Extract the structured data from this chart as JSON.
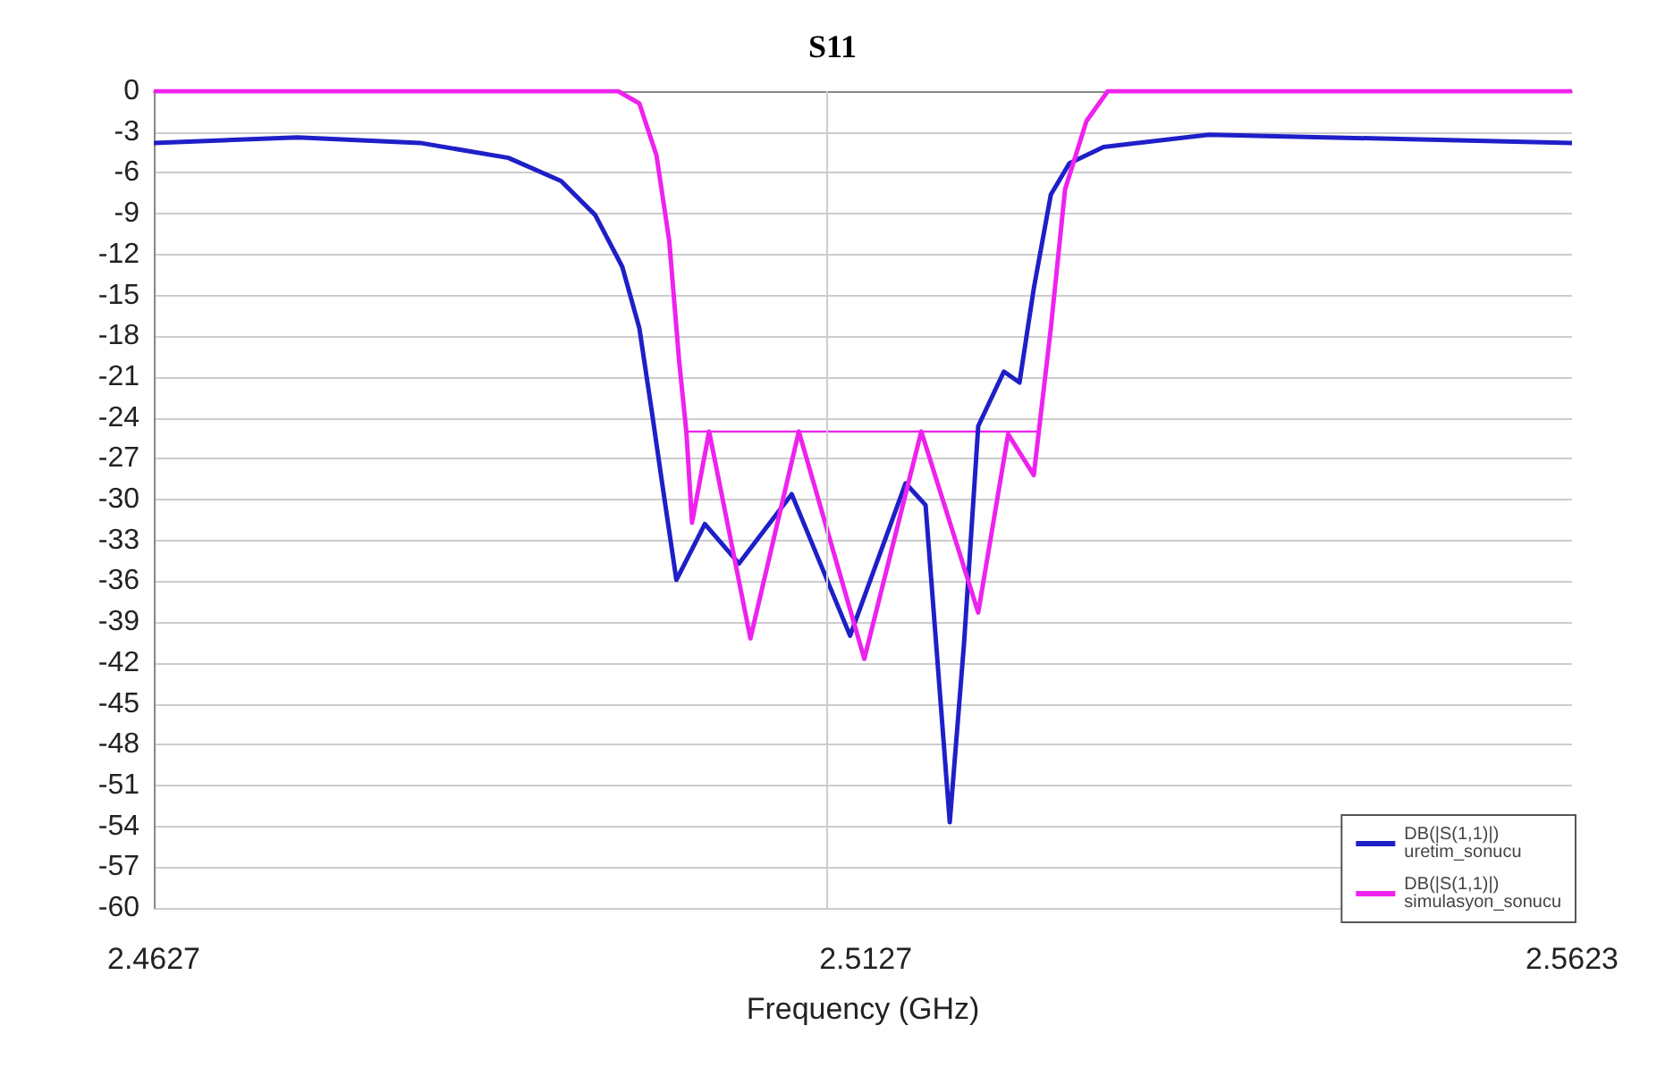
{
  "chart_data": {
    "type": "line",
    "title": "S11",
    "xlabel": "Frequency (GHz)",
    "xlim": [
      2.4627,
      2.5623
    ],
    "xticks": [
      2.4627,
      2.5127,
      2.5623
    ],
    "ylim": [
      -60,
      0
    ],
    "yticks": [
      0,
      -3,
      -6,
      -9,
      -12,
      -15,
      -18,
      -21,
      -24,
      -27,
      -30,
      -33,
      -36,
      -39,
      -42,
      -45,
      -48,
      -51,
      -54,
      -57,
      -60
    ],
    "grid": true,
    "legend": "bottom right",
    "marker": "none",
    "line_style": "solid",
    "series": [
      {
        "name": "DB(|S(1,1)|)\nuretim_sonucu",
        "color": "#1f1fc8",
        "x": [
          2.4627,
          2.4728,
          2.4814,
          2.4876,
          2.4913,
          2.4937,
          2.4956,
          2.4968,
          2.4977,
          2.4984,
          2.4994,
          2.5014,
          2.5038,
          2.5075,
          2.5116,
          2.5155,
          2.5169,
          2.5186,
          2.5196,
          2.5206,
          2.5224,
          2.5235,
          2.5245,
          2.5257,
          2.527,
          2.5294,
          2.5368,
          2.5623
        ],
        "values": [
          -3.8,
          -3.4,
          -3.8,
          -4.9,
          -6.6,
          -9.1,
          -12.9,
          -17.4,
          -23.7,
          -28.8,
          -35.9,
          -31.8,
          -34.7,
          -29.6,
          -40,
          -28.8,
          -30.4,
          -53.7,
          -40.6,
          -24.6,
          -20.6,
          -21.4,
          -14.5,
          -7.6,
          -5.3,
          -4.1,
          -3.2,
          -3.8
        ]
      },
      {
        "name": "DB(|S(1,1)|)\nsimulasyon_sonucu",
        "color": "#ee22ee",
        "x": [
          2.4627,
          2.4953,
          2.4968,
          2.498,
          2.4989,
          2.4996,
          2.5001,
          2.5005,
          2.5017,
          2.5046,
          2.508,
          2.5126,
          2.5166,
          2.5206,
          2.5227,
          2.5245,
          2.5257,
          2.5267,
          2.5282,
          2.5297,
          2.5623
        ],
        "values": [
          0,
          0,
          -0.9,
          -4.7,
          -11,
          -19.9,
          -25,
          -31.7,
          -25,
          -40.2,
          -25,
          -41.7,
          -25,
          -38.3,
          -25.2,
          -28.2,
          -17.4,
          -7.2,
          -2.2,
          0,
          0
        ]
      },
      {
        "color": "#ee22ee",
        "x": [
          2.5001,
          2.5249
        ],
        "values": [
          -25,
          -25
        ]
      }
    ]
  }
}
